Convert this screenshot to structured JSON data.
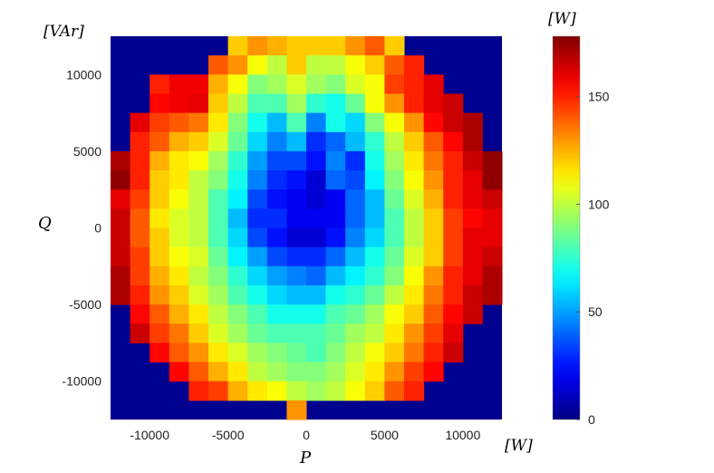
{
  "chart_data": {
    "type": "heatmap",
    "title": "",
    "xlabel": "P",
    "ylabel": "Q",
    "x_unit_label": "[W]",
    "y_unit_label": "[VAr]",
    "colorbar_label": "[W]",
    "colormap": "jet",
    "xlim": [
      -12500,
      12500
    ],
    "ylim": [
      -12500,
      12500
    ],
    "x_ticks": [
      -10000,
      -5000,
      0,
      5000,
      10000
    ],
    "x_tick_labels": [
      "-10000",
      "-5000",
      "0",
      "5000",
      "10000"
    ],
    "y_ticks": [
      10000,
      5000,
      0,
      -5000,
      -10000
    ],
    "y_tick_labels": [
      "10000",
      "5000",
      "0",
      "-5000",
      "-10000"
    ],
    "colorbar_range": [
      0,
      178
    ],
    "colorbar_ticks": [
      150,
      100,
      50,
      0
    ],
    "colorbar_tick_labels": [
      "150",
      "100",
      "50",
      "0"
    ],
    "background_color": "#00008f",
    "cell_size": 1250,
    "x_centers": [
      -11875,
      -10625,
      -9375,
      -8125,
      -6875,
      -5625,
      -4375,
      -3125,
      -1875,
      -625,
      625,
      1875,
      3125,
      4375,
      5625,
      6875,
      8125,
      9375,
      10625,
      11875
    ],
    "y_centers": [
      11875,
      10625,
      9375,
      8125,
      6875,
      5625,
      4375,
      3125,
      1875,
      625,
      -625,
      -1875,
      -3125,
      -4375,
      -5625,
      -6875,
      -8125,
      -9375,
      -10625,
      -11875
    ],
    "values": [
      [
        null,
        null,
        null,
        null,
        null,
        null,
        120,
        130,
        125,
        120,
        120,
        120,
        130,
        140,
        120,
        null,
        null,
        null,
        null,
        null
      ],
      [
        null,
        null,
        null,
        null,
        null,
        140,
        130,
        110,
        100,
        120,
        100,
        100,
        110,
        120,
        140,
        150,
        null,
        null,
        null,
        null
      ],
      [
        null,
        null,
        150,
        158,
        158,
        125,
        110,
        90,
        95,
        105,
        95,
        90,
        105,
        110,
        145,
        150,
        160,
        null,
        null,
        null
      ],
      [
        null,
        null,
        155,
        158,
        160,
        120,
        100,
        80,
        80,
        95,
        75,
        70,
        85,
        110,
        130,
        150,
        160,
        165,
        null,
        null
      ],
      [
        null,
        160,
        145,
        140,
        135,
        115,
        90,
        70,
        55,
        80,
        45,
        70,
        60,
        90,
        110,
        130,
        155,
        165,
        170,
        null
      ],
      [
        null,
        150,
        140,
        125,
        120,
        105,
        85,
        60,
        45,
        55,
        30,
        40,
        55,
        75,
        100,
        120,
        140,
        155,
        170,
        null
      ],
      [
        170,
        150,
        125,
        115,
        110,
        95,
        75,
        50,
        35,
        35,
        25,
        45,
        30,
        70,
        95,
        115,
        135,
        150,
        165,
        175
      ],
      [
        175,
        150,
        120,
        115,
        100,
        90,
        70,
        45,
        30,
        25,
        15,
        40,
        35,
        65,
        90,
        110,
        130,
        150,
        160,
        175
      ],
      [
        160,
        145,
        120,
        110,
        100,
        80,
        65,
        35,
        25,
        20,
        15,
        20,
        40,
        55,
        85,
        105,
        125,
        150,
        160,
        165
      ],
      [
        165,
        140,
        115,
        105,
        100,
        80,
        55,
        30,
        30,
        20,
        20,
        20,
        40,
        55,
        80,
        100,
        120,
        145,
        155,
        160
      ],
      [
        165,
        140,
        120,
        105,
        100,
        80,
        60,
        35,
        25,
        15,
        15,
        25,
        45,
        60,
        80,
        100,
        120,
        145,
        160,
        160
      ],
      [
        165,
        145,
        120,
        110,
        105,
        85,
        65,
        50,
        35,
        30,
        30,
        40,
        55,
        70,
        85,
        105,
        120,
        145,
        160,
        165
      ],
      [
        170,
        145,
        125,
        115,
        100,
        90,
        75,
        60,
        50,
        45,
        40,
        55,
        65,
        75,
        90,
        110,
        130,
        150,
        160,
        170
      ],
      [
        170,
        150,
        130,
        120,
        105,
        95,
        80,
        70,
        60,
        55,
        55,
        70,
        75,
        85,
        100,
        115,
        135,
        150,
        165,
        170
      ],
      [
        null,
        155,
        140,
        125,
        115,
        100,
        90,
        80,
        70,
        70,
        70,
        80,
        85,
        95,
        110,
        120,
        140,
        155,
        165,
        null
      ],
      [
        null,
        165,
        145,
        135,
        120,
        105,
        95,
        85,
        80,
        80,
        80,
        85,
        95,
        100,
        115,
        130,
        145,
        160,
        null,
        null
      ],
      [
        null,
        null,
        155,
        140,
        130,
        115,
        105,
        95,
        90,
        85,
        80,
        90,
        100,
        110,
        120,
        135,
        150,
        165,
        null,
        null
      ],
      [
        null,
        null,
        null,
        155,
        140,
        125,
        115,
        100,
        95,
        90,
        90,
        95,
        105,
        115,
        130,
        145,
        155,
        null,
        null,
        null
      ],
      [
        null,
        null,
        null,
        null,
        150,
        145,
        125,
        115,
        110,
        100,
        95,
        100,
        110,
        120,
        140,
        150,
        null,
        null,
        null,
        null
      ],
      [
        null,
        null,
        null,
        null,
        null,
        null,
        null,
        null,
        null,
        130,
        null,
        null,
        null,
        null,
        null,
        null,
        null,
        null,
        null,
        null
      ]
    ]
  }
}
